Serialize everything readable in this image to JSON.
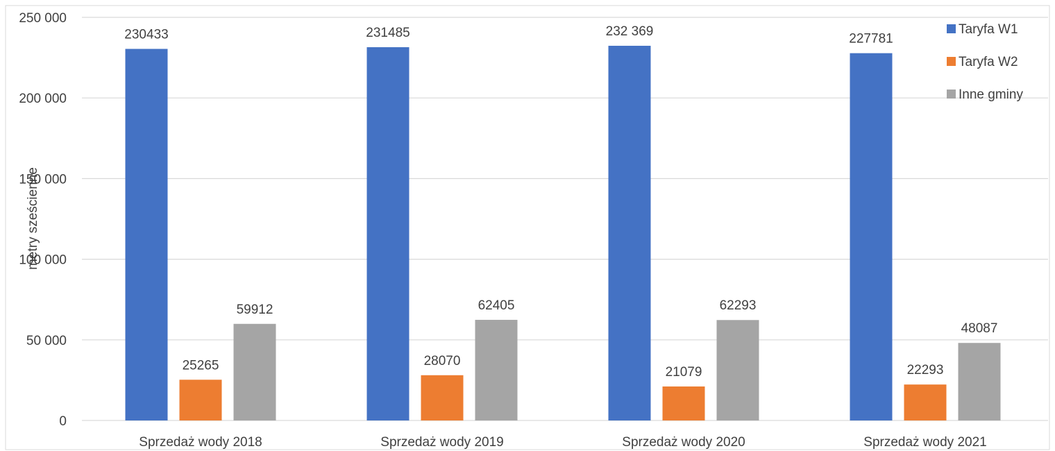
{
  "chart_data": {
    "type": "bar",
    "categories": [
      "Sprzedaż wody 2018",
      "Sprzedaż wody 2019",
      "Sprzedaż wody 2020",
      "Sprzedaż wody 2021"
    ],
    "series": [
      {
        "name": "Taryfa W1",
        "color": "#4472C4",
        "values": [
          230433,
          231485,
          232369,
          227781
        ],
        "labels": [
          "230433",
          "231485",
          "232 369",
          "227781"
        ]
      },
      {
        "name": "Taryfa W2",
        "color": "#ED7D31",
        "values": [
          25265,
          28070,
          21079,
          22293
        ],
        "labels": [
          "25265",
          "28070",
          "21079",
          "22293"
        ]
      },
      {
        "name": "Inne gminy",
        "color": "#A5A5A5",
        "values": [
          59912,
          62405,
          62293,
          48087
        ],
        "labels": [
          "59912",
          "62405",
          "62293",
          "48087"
        ]
      }
    ],
    "ylabel": "metry sześcienne",
    "ylim": [
      0,
      250000
    ],
    "yticks": [
      0,
      50000,
      100000,
      150000,
      200000,
      250000
    ],
    "ytick_labels": [
      "0",
      "50 000",
      "100 000",
      "150 000",
      "200 000",
      "250 000"
    ],
    "grid": true,
    "legend": "top-right",
    "gridline_color": "#D9D9D9"
  }
}
